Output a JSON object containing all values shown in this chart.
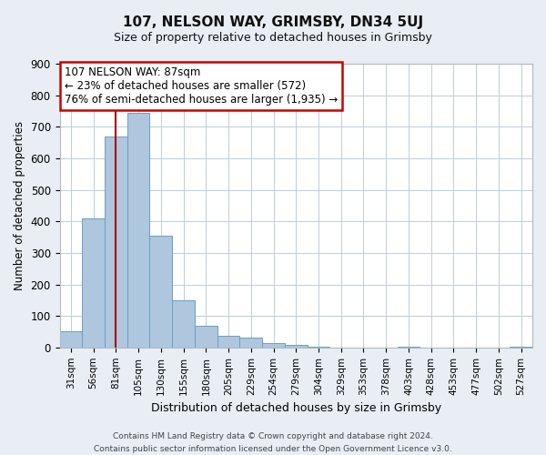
{
  "title": "107, NELSON WAY, GRIMSBY, DN34 5UJ",
  "subtitle": "Size of property relative to detached houses in Grimsby",
  "xlabel": "Distribution of detached houses by size in Grimsby",
  "ylabel": "Number of detached properties",
  "bar_labels": [
    "31sqm",
    "56sqm",
    "81sqm",
    "105sqm",
    "130sqm",
    "155sqm",
    "180sqm",
    "205sqm",
    "229sqm",
    "254sqm",
    "279sqm",
    "304sqm",
    "329sqm",
    "353sqm",
    "378sqm",
    "403sqm",
    "428sqm",
    "453sqm",
    "477sqm",
    "502sqm",
    "527sqm"
  ],
  "bar_values": [
    50,
    410,
    670,
    745,
    355,
    150,
    70,
    37,
    30,
    15,
    8,
    2,
    0,
    0,
    0,
    3,
    0,
    0,
    0,
    0,
    2
  ],
  "bar_color": "#aec6de",
  "bar_edge_color": "#6a9fc0",
  "ylim": [
    0,
    900
  ],
  "yticks": [
    0,
    100,
    200,
    300,
    400,
    500,
    600,
    700,
    800,
    900
  ],
  "vline_x": 2.0,
  "vline_color": "#aa0000",
  "annotation_line1": "107 NELSON WAY: 87sqm",
  "annotation_line2": "← 23% of detached houses are smaller (572)",
  "annotation_line3": "76% of semi-detached houses are larger (1,935) →",
  "footer_line1": "Contains HM Land Registry data © Crown copyright and database right 2024.",
  "footer_line2": "Contains public sector information licensed under the Open Government Licence v3.0.",
  "bg_color": "#e8eef4",
  "plot_bg_color": "#ffffff",
  "grid_color": "#c0cdd8",
  "spine_color": "#b0b8c0"
}
